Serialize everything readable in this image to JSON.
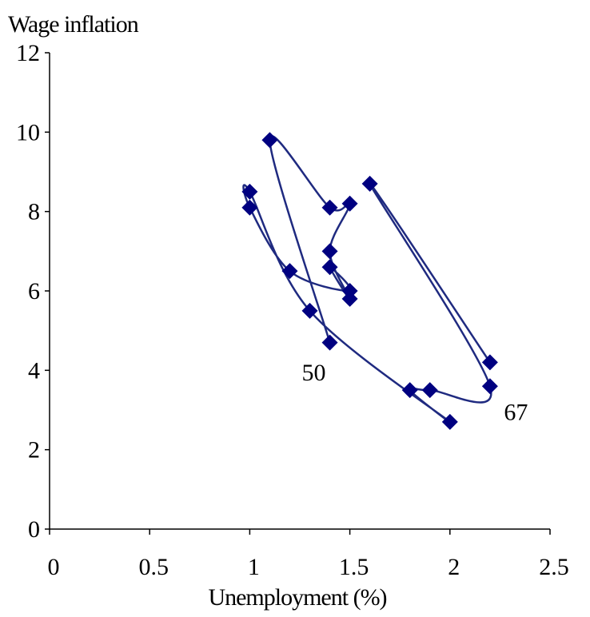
{
  "chart_data": {
    "type": "scatter",
    "ylabel": "Wage inflation",
    "xlabel": "Unemployment (%)",
    "xlim": [
      0,
      2.5
    ],
    "ylim": [
      0,
      12
    ],
    "x_ticks": [
      0,
      0.5,
      1,
      1.5,
      2,
      2.5
    ],
    "x_tick_labels": [
      "0",
      "0.5",
      "1",
      "1.5",
      "2",
      "2.5"
    ],
    "y_ticks": [
      0,
      2,
      4,
      6,
      8,
      10,
      12
    ],
    "y_tick_labels": [
      "0",
      "2",
      "4",
      "6",
      "8",
      "10",
      "12"
    ],
    "grid": false,
    "marker_color": "#000080",
    "line_color": "#1f2a80",
    "series": [
      {
        "points": [
          {
            "x": 1.4,
            "y": 4.7
          },
          {
            "x": 1.1,
            "y": 9.8
          },
          {
            "x": 1.4,
            "y": 8.1
          },
          {
            "x": 1.5,
            "y": 8.2
          },
          {
            "x": 1.4,
            "y": 7.0
          },
          {
            "x": 1.5,
            "y": 5.8
          },
          {
            "x": 1.4,
            "y": 6.6
          },
          {
            "x": 1.5,
            "y": 6.0
          },
          {
            "x": 1.2,
            "y": 6.5
          },
          {
            "x": 1.0,
            "y": 8.1
          },
          {
            "x": 1.0,
            "y": 8.5
          },
          {
            "x": 1.3,
            "y": 5.5
          },
          {
            "x": 2.0,
            "y": 2.7
          },
          {
            "x": 1.8,
            "y": 3.5
          },
          {
            "x": 1.9,
            "y": 3.5
          },
          {
            "x": 2.2,
            "y": 3.6
          },
          {
            "x": 1.6,
            "y": 8.7
          },
          {
            "x": 2.2,
            "y": 4.2
          }
        ]
      }
    ],
    "annotations": [
      {
        "text": "50",
        "x": 1.32,
        "y": 3.75
      },
      {
        "text": "67",
        "x": 2.33,
        "y": 2.75
      }
    ]
  }
}
